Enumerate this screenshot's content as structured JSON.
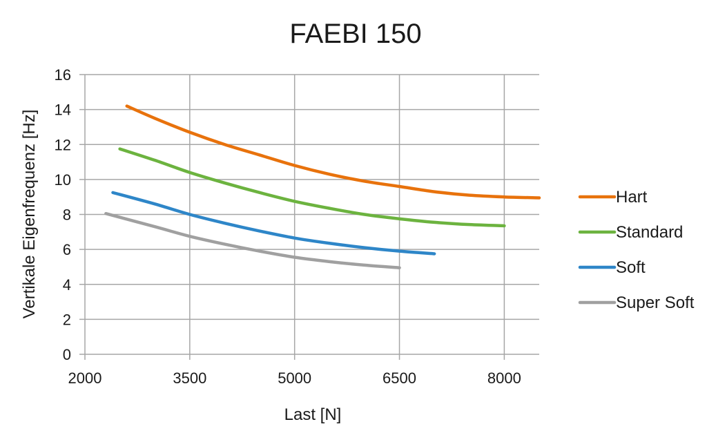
{
  "chart_data": {
    "type": "line",
    "title": "FAEBI 150",
    "xlabel": "Last [N]",
    "ylabel": "Vertikale Eigenfrequenz [Hz]",
    "xlim": [
      2000,
      8500
    ],
    "ylim": [
      0,
      16
    ],
    "x_ticks": [
      2000,
      3500,
      5000,
      6500,
      8000
    ],
    "y_ticks": [
      0,
      2,
      4,
      6,
      8,
      10,
      12,
      14,
      16
    ],
    "grid": true,
    "legend_position": "right",
    "series": [
      {
        "name": "Hart",
        "color": "#e8720c",
        "points": [
          [
            2600,
            14.2
          ],
          [
            3000,
            13.5
          ],
          [
            3500,
            12.7
          ],
          [
            4000,
            12.0
          ],
          [
            4500,
            11.4
          ],
          [
            5000,
            10.8
          ],
          [
            5500,
            10.3
          ],
          [
            6000,
            9.9
          ],
          [
            6500,
            9.6
          ],
          [
            7000,
            9.3
          ],
          [
            7500,
            9.1
          ],
          [
            8000,
            9.0
          ],
          [
            8500,
            8.95
          ]
        ]
      },
      {
        "name": "Standard",
        "color": "#6cb33f",
        "points": [
          [
            2500,
            11.75
          ],
          [
            3000,
            11.1
          ],
          [
            3500,
            10.4
          ],
          [
            4000,
            9.8
          ],
          [
            4500,
            9.25
          ],
          [
            5000,
            8.75
          ],
          [
            5500,
            8.35
          ],
          [
            6000,
            8.0
          ],
          [
            6500,
            7.75
          ],
          [
            7000,
            7.55
          ],
          [
            7500,
            7.42
          ],
          [
            8000,
            7.35
          ]
        ]
      },
      {
        "name": "Soft",
        "color": "#2e86c8",
        "points": [
          [
            2400,
            9.25
          ],
          [
            3000,
            8.6
          ],
          [
            3500,
            8.0
          ],
          [
            4000,
            7.5
          ],
          [
            4500,
            7.05
          ],
          [
            5000,
            6.65
          ],
          [
            5500,
            6.35
          ],
          [
            6000,
            6.1
          ],
          [
            6500,
            5.9
          ],
          [
            7000,
            5.75
          ]
        ]
      },
      {
        "name": "Super Soft",
        "color": "#a0a0a0",
        "points": [
          [
            2300,
            8.05
          ],
          [
            3000,
            7.3
          ],
          [
            3500,
            6.75
          ],
          [
            4000,
            6.3
          ],
          [
            4500,
            5.9
          ],
          [
            5000,
            5.55
          ],
          [
            5500,
            5.3
          ],
          [
            6000,
            5.1
          ],
          [
            6500,
            4.95
          ]
        ]
      }
    ]
  }
}
